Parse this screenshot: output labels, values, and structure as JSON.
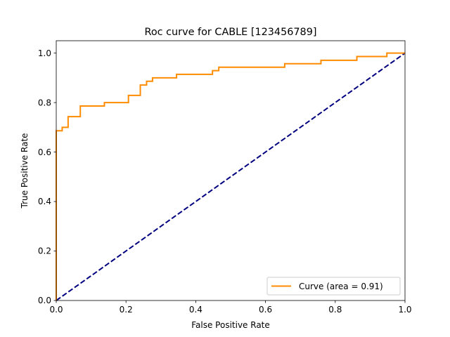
{
  "chart_data": {
    "type": "line",
    "title": "Roc curve for CABLE [123456789]",
    "xlabel": "False Positive Rate",
    "ylabel": "True Positive Rate",
    "xlim": [
      0.0,
      1.0
    ],
    "ylim": [
      0.0,
      1.05
    ],
    "grid": false,
    "legend_position": "lower-right",
    "x_ticks": [
      {
        "value": 0.0,
        "label": "0.0"
      },
      {
        "value": 0.2,
        "label": "0.2"
      },
      {
        "value": 0.4,
        "label": "0.4"
      },
      {
        "value": 0.6,
        "label": "0.6"
      },
      {
        "value": 0.8,
        "label": "0.8"
      },
      {
        "value": 1.0,
        "label": "1.0"
      }
    ],
    "y_ticks": [
      {
        "value": 0.0,
        "label": "0.0"
      },
      {
        "value": 0.2,
        "label": "0.2"
      },
      {
        "value": 0.4,
        "label": "0.4"
      },
      {
        "value": 0.6,
        "label": "0.6"
      },
      {
        "value": 0.8,
        "label": "0.8"
      },
      {
        "value": 1.0,
        "label": "1.0"
      }
    ],
    "series": [
      {
        "name": "Curve (area = 0.91)",
        "legend_label": "Curve (area = 0.91)",
        "color": "#ff8c00",
        "style": "solid",
        "in_legend": true,
        "x": [
          0.0,
          0.0,
          0.017,
          0.017,
          0.034,
          0.034,
          0.069,
          0.069,
          0.138,
          0.138,
          0.207,
          0.207,
          0.241,
          0.241,
          0.259,
          0.259,
          0.276,
          0.276,
          0.345,
          0.345,
          0.448,
          0.448,
          0.466,
          0.466,
          0.655,
          0.655,
          0.759,
          0.759,
          0.862,
          0.862,
          0.948,
          0.948,
          1.0
        ],
        "y": [
          0.0,
          0.686,
          0.686,
          0.7,
          0.7,
          0.743,
          0.743,
          0.786,
          0.786,
          0.8,
          0.8,
          0.829,
          0.829,
          0.871,
          0.871,
          0.886,
          0.886,
          0.9,
          0.9,
          0.914,
          0.914,
          0.929,
          0.929,
          0.943,
          0.943,
          0.957,
          0.957,
          0.971,
          0.971,
          0.986,
          0.986,
          1.0,
          1.0
        ]
      },
      {
        "name": "chance",
        "color": "#000080",
        "style": "dashed",
        "in_legend": false,
        "x": [
          0.0,
          1.0
        ],
        "y": [
          0.0,
          1.0
        ]
      }
    ]
  }
}
